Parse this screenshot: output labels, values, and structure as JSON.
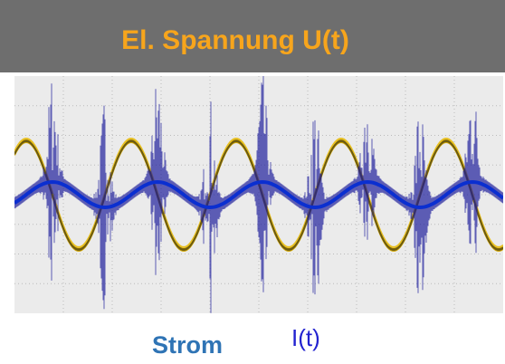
{
  "header": {
    "title": "El. Spannung U(t)"
  },
  "footer": {
    "label": "Strom",
    "symbol": "I(t)"
  }
}
